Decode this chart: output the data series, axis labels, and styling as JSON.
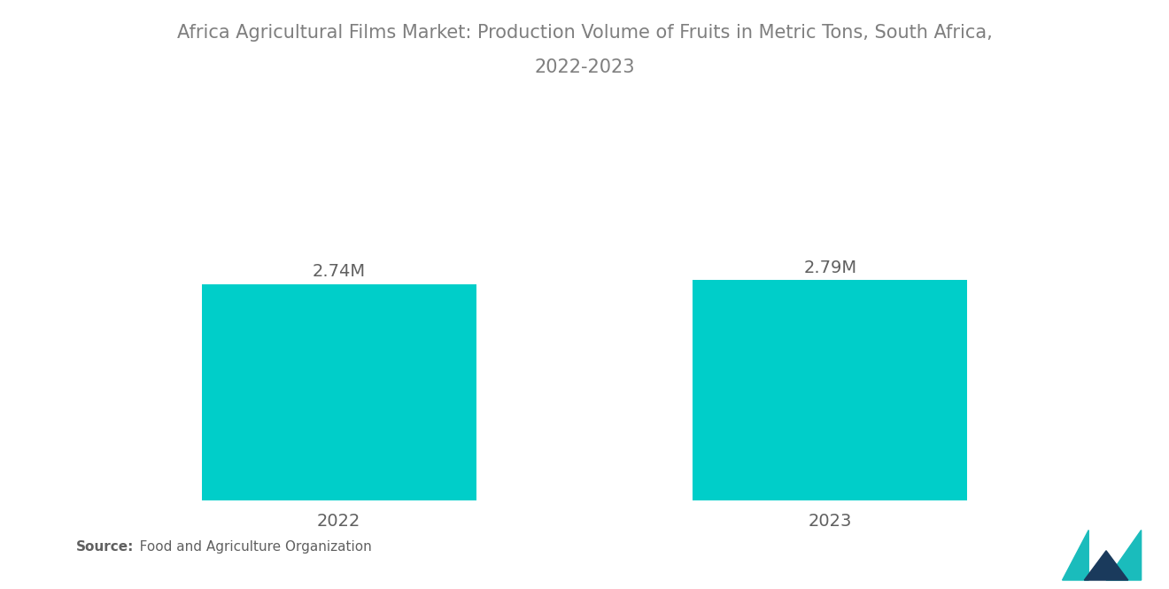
{
  "title_line1": "Africa Agricultural Films Market: Production Volume of Fruits in Metric Tons, South Africa,",
  "title_line2": "2022-2023",
  "categories": [
    "2022",
    "2023"
  ],
  "values": [
    2.74,
    2.79
  ],
  "value_labels": [
    "2.74M",
    "2.79M"
  ],
  "bar_color": "#00CEC9",
  "background_color": "#ffffff",
  "title_color": "#7f7f7f",
  "label_color": "#606060",
  "source_bold": "Source:",
  "source_normal": "   Food and Agriculture Organization",
  "title_fontsize": 15,
  "label_fontsize": 14,
  "value_fontsize": 14,
  "source_fontsize": 11,
  "bar_width": 0.28,
  "ylim": [
    0,
    3.5
  ],
  "xlim": [
    0,
    1
  ]
}
